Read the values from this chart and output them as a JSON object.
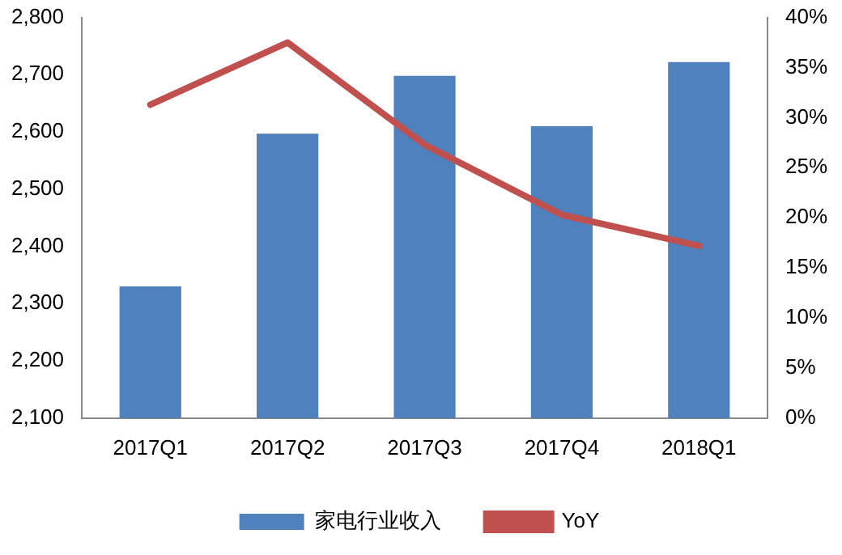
{
  "chart_data": {
    "type": "bar",
    "categories": [
      "2017Q1",
      "2017Q2",
      "2017Q3",
      "2017Q4",
      "2018Q1"
    ],
    "series": [
      {
        "name": "家电行业收入",
        "color": "#4f81bd",
        "values": [
          2330,
          2597,
          2698,
          2610,
          2722
        ]
      },
      {
        "name": "YoY",
        "type": "line",
        "axis": "y2",
        "color": "#c0504d",
        "values": [
          31.3,
          37.5,
          27.3,
          20.3,
          17.2
        ]
      }
    ],
    "ylim": [
      2100,
      2800
    ],
    "yticks": [
      {
        "value": 2100,
        "label": "2,100"
      },
      {
        "value": 2200,
        "label": "2,200"
      },
      {
        "value": 2300,
        "label": "2,300"
      },
      {
        "value": 2400,
        "label": "2,400"
      },
      {
        "value": 2500,
        "label": "2,500"
      },
      {
        "value": 2600,
        "label": "2,600"
      },
      {
        "value": 2700,
        "label": "2,700"
      },
      {
        "value": 2800,
        "label": "2,800"
      }
    ],
    "y2lim": [
      0,
      40
    ],
    "y2ticks": [
      {
        "value": 0,
        "label": "0%"
      },
      {
        "value": 5,
        "label": "5%"
      },
      {
        "value": 10,
        "label": "10%"
      },
      {
        "value": 15,
        "label": "15%"
      },
      {
        "value": 20,
        "label": "20%"
      },
      {
        "value": 25,
        "label": "25%"
      },
      {
        "value": 30,
        "label": "30%"
      },
      {
        "value": 35,
        "label": "35%"
      },
      {
        "value": 40,
        "label": "40%"
      }
    ],
    "grid": false,
    "legend": "bottom",
    "marker": "none"
  }
}
